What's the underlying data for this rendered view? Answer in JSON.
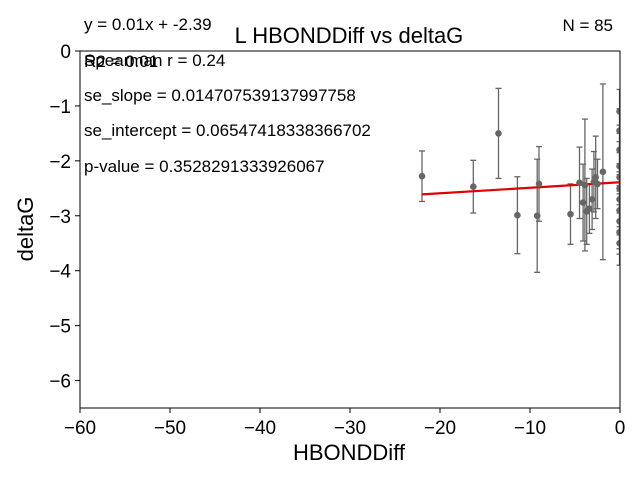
{
  "chart_data": {
    "type": "scatter",
    "title": "L HBONDDiff vs deltaG",
    "xlabel": "HBONDDiff",
    "ylabel": "deltaG",
    "xlim": [
      -60,
      0
    ],
    "ylim": [
      -6.5,
      0
    ],
    "xticks": [
      -60,
      -50,
      -40,
      -30,
      -20,
      -10,
      0
    ],
    "yticks": [
      0,
      -1,
      -2,
      -3,
      -4,
      -5,
      -6
    ],
    "xtick_labels": [
      "−60",
      "−50",
      "−40",
      "−30",
      "−20",
      "−10",
      "0"
    ],
    "ytick_labels": [
      "0",
      "−1",
      "−2",
      "−3",
      "−4",
      "−5",
      "−6"
    ],
    "grid": false,
    "annotations": {
      "equation": "y = 0.01x + -2.39",
      "r2": "R2 = 0.01",
      "spearman": "Spearman r = 0.24",
      "se_slope": "se_slope = 0.014707539137997758",
      "se_intercept": "se_intercept = 0.06547418338366702",
      "p_value": "p-value = 0.3528291333926067",
      "n": "N = 85"
    },
    "fit_line": {
      "slope": 0.01,
      "intercept": -2.39,
      "x_range": [
        -22,
        0
      ],
      "color": "#e00000"
    },
    "point_color": "#666666",
    "errorbar_color": "#666666",
    "points": [
      {
        "x": -22.0,
        "y": -2.28,
        "err": 0.46
      },
      {
        "x": -16.3,
        "y": -2.47,
        "err": 0.48
      },
      {
        "x": -13.5,
        "y": -1.5,
        "err": 0.82
      },
      {
        "x": -11.4,
        "y": -2.99,
        "err": 0.7
      },
      {
        "x": -9.2,
        "y": -3.0,
        "err": 1.03
      },
      {
        "x": -9.0,
        "y": -2.42,
        "err": 0.68
      },
      {
        "x": -5.5,
        "y": -2.97,
        "err": 0.55
      },
      {
        "x": -4.5,
        "y": -2.4,
        "err": 0.65
      },
      {
        "x": -4.1,
        "y": -2.76,
        "err": 0.7
      },
      {
        "x": -3.9,
        "y": -2.44,
        "err": 1.2
      },
      {
        "x": -3.7,
        "y": -2.92,
        "err": 0.6
      },
      {
        "x": -3.4,
        "y": -2.87,
        "err": 0.45
      },
      {
        "x": -3.1,
        "y": -2.7,
        "err": 0.55
      },
      {
        "x": -2.9,
        "y": -2.38,
        "err": 0.55
      },
      {
        "x": -2.7,
        "y": -2.3,
        "err": 0.75
      },
      {
        "x": -2.5,
        "y": -2.42,
        "err": 0.45
      },
      {
        "x": -1.9,
        "y": -2.2,
        "err": 1.6
      },
      {
        "x": -0.05,
        "y": -1.1,
        "err": 0.4
      },
      {
        "x": -0.05,
        "y": -1.45,
        "err": 0.4
      },
      {
        "x": -0.05,
        "y": -1.8,
        "err": 0.45
      },
      {
        "x": -0.05,
        "y": -2.1,
        "err": 0.45
      },
      {
        "x": -0.05,
        "y": -2.3,
        "err": 0.5
      },
      {
        "x": -0.05,
        "y": -2.5,
        "err": 0.45
      },
      {
        "x": -0.05,
        "y": -2.7,
        "err": 0.5
      },
      {
        "x": -0.05,
        "y": -2.9,
        "err": 0.45
      },
      {
        "x": -0.05,
        "y": -3.1,
        "err": 0.5
      },
      {
        "x": -0.05,
        "y": -3.3,
        "err": 0.4
      },
      {
        "x": -0.05,
        "y": -3.5,
        "err": 0.4
      }
    ]
  }
}
